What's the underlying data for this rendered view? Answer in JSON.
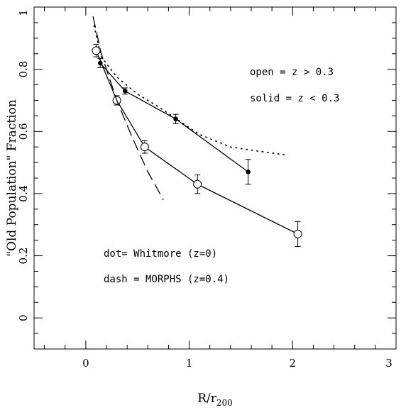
{
  "chart_data": {
    "type": "scatter",
    "title": "",
    "xlabel": "R/r",
    "xlabel_sub": "200",
    "ylabel": "\"Old Population\" Fraction",
    "xlim": [
      -0.5,
      3
    ],
    "ylim": [
      -0.1,
      1
    ],
    "x_ticks": [
      0,
      1,
      2,
      3
    ],
    "x_tick_labels": [
      "0",
      "1",
      "2",
      "3"
    ],
    "y_ticks": [
      0,
      0.2,
      0.4,
      0.6,
      0.8,
      1
    ],
    "y_tick_labels": [
      "0",
      "0.2",
      "0.4",
      "0.6",
      "0.8",
      "1"
    ],
    "grid": false,
    "annotations": {
      "open": "open = z > 0.3",
      "solid": "solid =  z < 0.3",
      "dot": "dot= Whitmore (z=0)",
      "dash": "dash = MORPHS (z=0.4)"
    },
    "series": [
      {
        "marker": "open-circle",
        "line": "solid",
        "x": [
          0.1,
          0.3,
          0.57,
          1.08,
          2.05
        ],
        "y": [
          0.86,
          0.7,
          0.55,
          0.43,
          0.27
        ],
        "err": [
          0.02,
          0.015,
          0.02,
          0.03,
          0.04
        ]
      },
      {
        "marker": "filled-circle",
        "line": "solid",
        "x": [
          0.14,
          0.38,
          0.87,
          1.57
        ],
        "y": [
          0.82,
          0.73,
          0.64,
          0.47
        ],
        "err": [
          0.015,
          0.01,
          0.015,
          0.04
        ]
      },
      {
        "line": "dotted",
        "x": [
          0.08,
          0.15,
          0.3,
          0.5,
          0.7,
          0.9,
          1.1,
          1.4,
          1.7,
          1.92
        ],
        "y": [
          0.94,
          0.84,
          0.775,
          0.72,
          0.68,
          0.635,
          0.59,
          0.55,
          0.535,
          0.525
        ]
      },
      {
        "line": "dashed",
        "x": [
          0.07,
          0.15,
          0.3,
          0.45,
          0.6,
          0.75
        ],
        "y": [
          0.97,
          0.85,
          0.7,
          0.58,
          0.47,
          0.38
        ]
      }
    ]
  }
}
